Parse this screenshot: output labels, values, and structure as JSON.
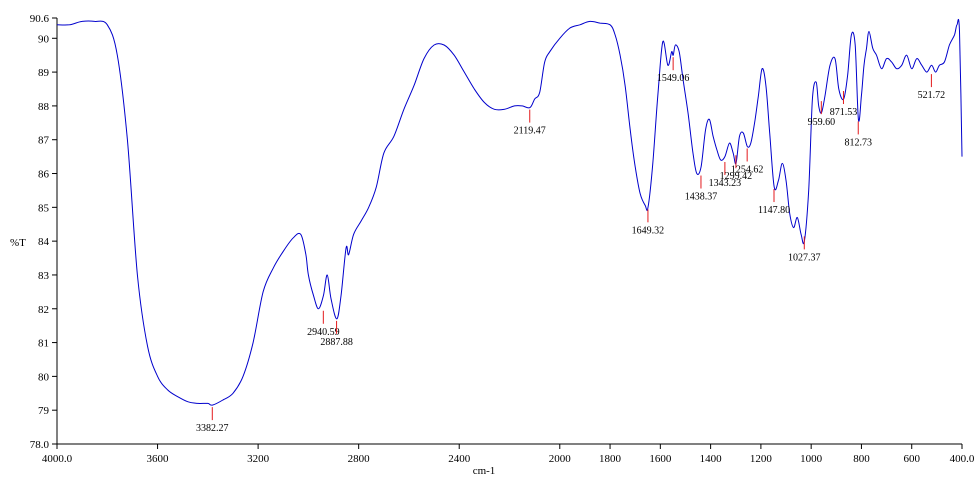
{
  "chart_data": {
    "type": "line",
    "title": "",
    "xlabel": "cm-1",
    "ylabel": "%T",
    "xlim": [
      4000.0,
      400.0
    ],
    "ylim": [
      78.0,
      90.6
    ],
    "x_reversed": true,
    "grid": false,
    "x_ticks": [
      "4000.0",
      "3600",
      "3200",
      "2800",
      "2400",
      "2000",
      "1800",
      "1600",
      "1400",
      "1200",
      "1000",
      "800",
      "600",
      "400.0"
    ],
    "x_tick_values": [
      4000,
      3600,
      3200,
      2800,
      2400,
      2000,
      1800,
      1600,
      1400,
      1200,
      1000,
      800,
      600,
      400
    ],
    "y_ticks": [
      "78.0",
      "79",
      "80",
      "81",
      "82",
      "83",
      "84",
      "85",
      "86",
      "87",
      "88",
      "89",
      "90",
      "90.6"
    ],
    "y_tick_values": [
      78,
      79,
      80,
      81,
      82,
      83,
      84,
      85,
      86,
      87,
      88,
      89,
      90,
      90.6
    ],
    "line_color": "#0000cc",
    "marker_color": "#e31a1c",
    "series": [
      {
        "x": [
          4000,
          3950,
          3900,
          3850,
          3800,
          3760,
          3720,
          3680,
          3640,
          3600,
          3560,
          3520,
          3480,
          3440,
          3400,
          3382,
          3340,
          3300,
          3260,
          3220,
          3180,
          3140,
          3100,
          3060,
          3030,
          3010,
          3000,
          2980,
          2960,
          2940,
          2925,
          2910,
          2887,
          2870,
          2850,
          2840,
          2820,
          2790,
          2760,
          2730,
          2700,
          2660,
          2620,
          2580,
          2540,
          2500,
          2460,
          2420,
          2380,
          2340,
          2300,
          2260,
          2220,
          2180,
          2150,
          2119,
          2100,
          2080,
          2060,
          2040,
          2000,
          1960,
          1920,
          1880,
          1840,
          1800,
          1780,
          1760,
          1740,
          1720,
          1700,
          1680,
          1660,
          1649,
          1630,
          1610,
          1590,
          1570,
          1555,
          1549,
          1540,
          1525,
          1510,
          1490,
          1470,
          1455,
          1438,
          1420,
          1405,
          1390,
          1375,
          1360,
          1343,
          1325,
          1310,
          1299,
          1285,
          1270,
          1254,
          1240,
          1225,
          1210,
          1195,
          1180,
          1165,
          1147,
          1130,
          1115,
          1100,
          1085,
          1070,
          1055,
          1040,
          1027,
          1010,
          995,
          980,
          970,
          959,
          945,
          925,
          905,
          890,
          871,
          855,
          840,
          825,
          812,
          800,
          790,
          780,
          770,
          755,
          740,
          720,
          700,
          680,
          660,
          640,
          620,
          600,
          580,
          560,
          540,
          521,
          505,
          490,
          470,
          450,
          430,
          420,
          410,
          400
        ],
        "y": [
          90.4,
          90.4,
          90.5,
          90.5,
          90.4,
          89.5,
          87.0,
          83.0,
          80.9,
          80.0,
          79.6,
          79.4,
          79.25,
          79.2,
          79.2,
          79.15,
          79.3,
          79.5,
          80.0,
          81.0,
          82.5,
          83.2,
          83.7,
          84.1,
          84.2,
          83.6,
          83.0,
          82.4,
          82.0,
          82.4,
          83.0,
          82.3,
          81.7,
          82.4,
          83.8,
          83.6,
          84.2,
          84.6,
          85.0,
          85.6,
          86.6,
          87.1,
          87.9,
          88.6,
          89.4,
          89.8,
          89.8,
          89.5,
          89.0,
          88.5,
          88.1,
          87.9,
          87.9,
          88.0,
          88.0,
          87.95,
          88.2,
          88.4,
          89.3,
          89.6,
          90.0,
          90.3,
          90.4,
          90.5,
          90.45,
          90.4,
          90.1,
          89.5,
          88.6,
          87.3,
          86.2,
          85.4,
          85.05,
          85.0,
          86.3,
          88.3,
          89.9,
          89.2,
          89.6,
          89.5,
          89.8,
          89.6,
          88.8,
          87.8,
          86.6,
          86.0,
          86.2,
          87.3,
          87.6,
          87.1,
          86.7,
          86.4,
          86.5,
          86.9,
          86.6,
          86.3,
          87.1,
          87.2,
          86.8,
          86.9,
          87.5,
          88.3,
          89.1,
          88.6,
          87.2,
          85.6,
          85.8,
          86.3,
          85.8,
          84.8,
          84.4,
          84.7,
          84.2,
          84.0,
          85.5,
          88.2,
          88.7,
          88.0,
          87.8,
          88.3,
          89.2,
          89.4,
          88.5,
          88.2,
          88.9,
          90.1,
          89.8,
          87.6,
          88.3,
          89.2,
          89.7,
          90.2,
          89.7,
          89.5,
          89.1,
          89.4,
          89.3,
          89.1,
          89.2,
          89.5,
          89.1,
          89.4,
          89.2,
          89.0,
          89.2,
          89.0,
          89.2,
          89.3,
          89.8,
          90.1,
          90.4,
          90.2,
          86.5
        ]
      }
    ],
    "peaks": [
      {
        "x": 3382.27,
        "y": 79.15,
        "label": "3382.27"
      },
      {
        "x": 2940.59,
        "y": 82.0,
        "label": "2940.59"
      },
      {
        "x": 2887.88,
        "y": 81.7,
        "label": "2887.88"
      },
      {
        "x": 2119.47,
        "y": 87.95,
        "label": "2119.47"
      },
      {
        "x": 1649.32,
        "y": 85.0,
        "label": "1649.32"
      },
      {
        "x": 1549.06,
        "y": 89.5,
        "label": "1549.06"
      },
      {
        "x": 1438.37,
        "y": 86.0,
        "label": "1438.37"
      },
      {
        "x": 1343.23,
        "y": 86.4,
        "label": "1343.23"
      },
      {
        "x": 1299.42,
        "y": 86.6,
        "label": "1299.42"
      },
      {
        "x": 1254.62,
        "y": 86.8,
        "label": "1254.62"
      },
      {
        "x": 1147.8,
        "y": 85.6,
        "label": "1147.80"
      },
      {
        "x": 1027.37,
        "y": 84.2,
        "label": "1027.37"
      },
      {
        "x": 959.6,
        "y": 88.2,
        "label": "959.60"
      },
      {
        "x": 871.53,
        "y": 88.5,
        "label": "871.53"
      },
      {
        "x": 812.73,
        "y": 87.6,
        "label": "812.73"
      },
      {
        "x": 521.72,
        "y": 89.0,
        "label": "521.72"
      }
    ]
  }
}
